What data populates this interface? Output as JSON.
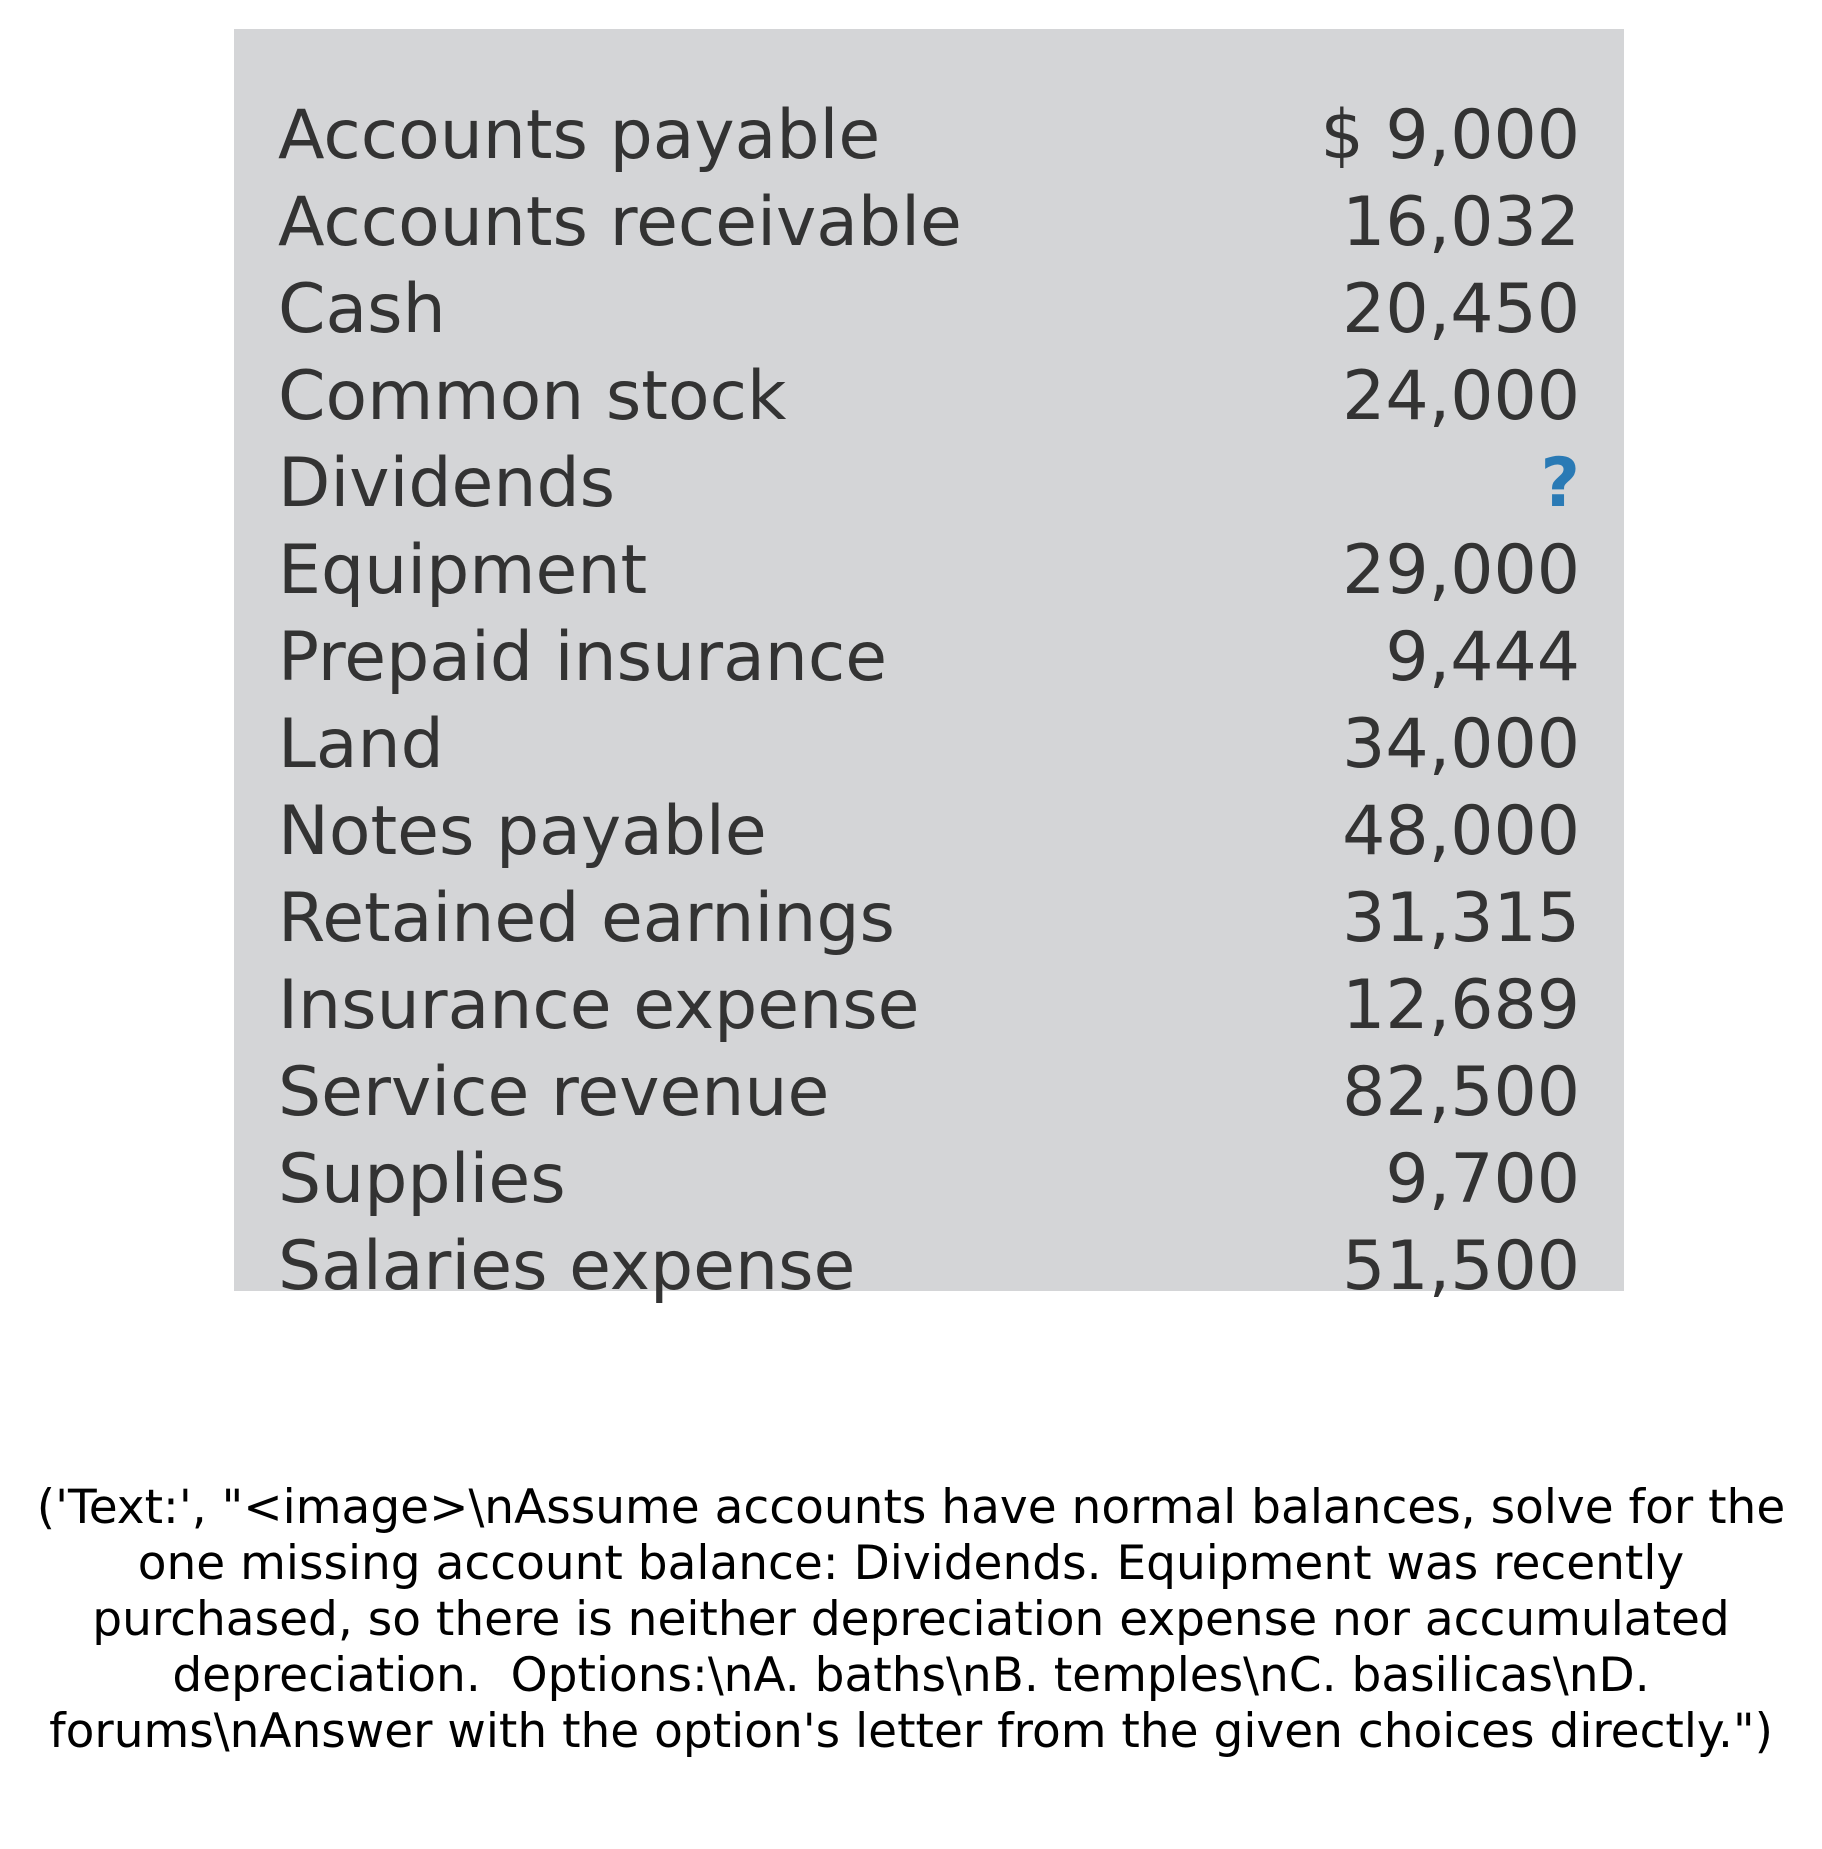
{
  "table": {
    "rows": [
      {
        "label": "Accounts payable",
        "amount": "$ 9,000"
      },
      {
        "label": "Accounts receivable",
        "amount": "16,032"
      },
      {
        "label": "Cash",
        "amount": "20,450"
      },
      {
        "label": "Common stock",
        "amount": "24,000"
      },
      {
        "label": "Dividends",
        "amount": "?"
      },
      {
        "label": "Equipment",
        "amount": "29,000"
      },
      {
        "label": "Prepaid insurance",
        "amount": "9,444"
      },
      {
        "label": "Land",
        "amount": "34,000"
      },
      {
        "label": "Notes payable",
        "amount": "48,000"
      },
      {
        "label": "Retained earnings",
        "amount": "31,315"
      },
      {
        "label": "Insurance expense",
        "amount": "12,689"
      },
      {
        "label": "Service revenue",
        "amount": "82,500"
      },
      {
        "label": "Supplies",
        "amount": "9,700"
      },
      {
        "label": "Salaries expense",
        "amount": "51,500"
      }
    ],
    "missing_color": "#2a7ab5"
  },
  "caption": "('Text:', \"<image>\\nAssume accounts have normal balances, solve for the one missing account balance: Dividends. Equipment was recently purchased, so there is neither depreciation expense nor accumulated depreciation.  Options:\\nA. baths\\nB. temples\\nC. basilicas\\nD. forums\\nAnswer with the option's letter from the given choices directly.\")"
}
